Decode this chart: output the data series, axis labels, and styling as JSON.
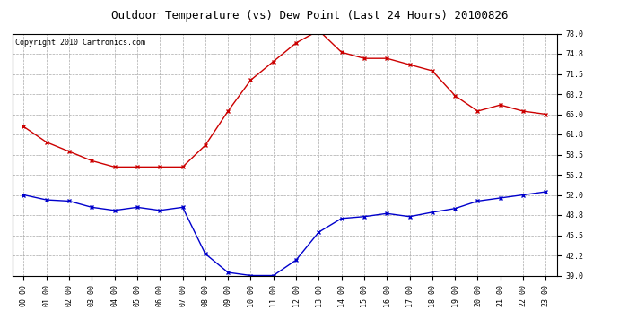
{
  "title": "Outdoor Temperature (vs) Dew Point (Last 24 Hours) 20100826",
  "copyright": "Copyright 2010 Cartronics.com",
  "hours": [
    "00:00",
    "01:00",
    "02:00",
    "03:00",
    "04:00",
    "05:00",
    "06:00",
    "07:00",
    "08:00",
    "09:00",
    "10:00",
    "11:00",
    "12:00",
    "13:00",
    "14:00",
    "15:00",
    "16:00",
    "17:00",
    "18:00",
    "19:00",
    "20:00",
    "21:00",
    "22:00",
    "23:00"
  ],
  "temp_red": [
    63.0,
    60.5,
    59.0,
    57.5,
    56.5,
    56.5,
    56.5,
    56.5,
    60.0,
    65.5,
    70.5,
    73.5,
    76.5,
    78.5,
    75.0,
    74.0,
    74.0,
    73.0,
    72.0,
    68.0,
    65.5,
    66.5,
    65.5,
    65.0
  ],
  "temp_blue": [
    52.0,
    51.2,
    51.0,
    50.0,
    49.5,
    50.0,
    49.5,
    50.0,
    42.5,
    39.5,
    39.0,
    39.0,
    41.5,
    46.0,
    48.2,
    48.5,
    49.0,
    48.5,
    49.2,
    49.8,
    51.0,
    51.5,
    52.0,
    52.5
  ],
  "red_color": "#cc0000",
  "blue_color": "#0000cc",
  "marker": "x",
  "ylim_min": 39.0,
  "ylim_max": 78.0,
  "yticks": [
    39.0,
    42.2,
    45.5,
    48.8,
    52.0,
    55.2,
    58.5,
    61.8,
    65.0,
    68.2,
    71.5,
    74.8,
    78.0
  ],
  "bg_color": "#ffffff",
  "grid_color": "#aaaaaa",
  "title_fontsize": 9,
  "copyright_fontsize": 6,
  "tick_fontsize": 6
}
